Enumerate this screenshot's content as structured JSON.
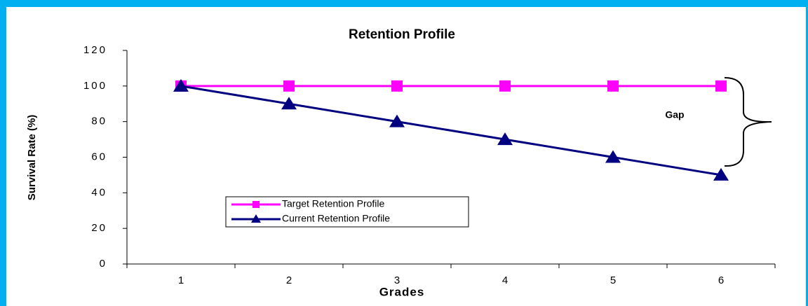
{
  "chart_data": {
    "type": "line",
    "title": "Retention Profile",
    "xlabel": "Grades",
    "ylabel": "Survival Rate (%)",
    "categories": [
      "1",
      "2",
      "3",
      "4",
      "5",
      "6"
    ],
    "series": [
      {
        "name": "Target Retention Profile",
        "color": "#ff00ff",
        "marker": "square",
        "values": [
          100,
          100,
          100,
          100,
          100,
          100
        ]
      },
      {
        "name": "Current Retention Profile",
        "color": "#000080",
        "marker": "triangle",
        "values": [
          100,
          90,
          80,
          70,
          60,
          50
        ]
      }
    ],
    "ylim": [
      0,
      120
    ],
    "yticks": [
      0,
      20,
      40,
      60,
      80,
      100,
      120
    ],
    "annotation": "Gap"
  }
}
